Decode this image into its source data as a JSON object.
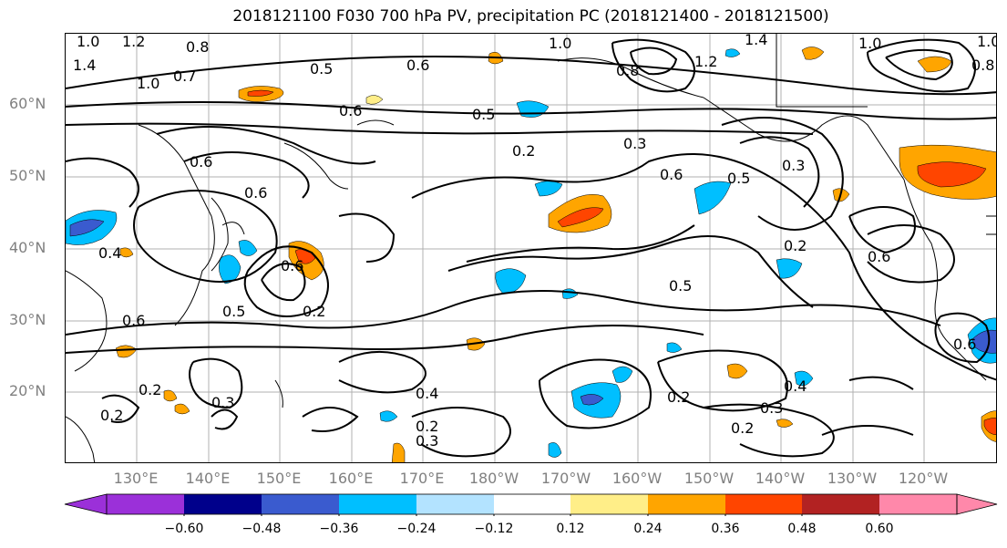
{
  "title": "2018121100 F030 700 hPa PV, precipitation PC (2018121400 - 2018121500)",
  "lat_labels": [
    "60°N",
    "50°N",
    "40°N",
    "30°N",
    "20°N"
  ],
  "lon_labels": [
    "130°E",
    "140°E",
    "150°E",
    "160°E",
    "170°E",
    "180°W",
    "170°W",
    "160°W",
    "150°W",
    "140°W",
    "130°W",
    "120°W"
  ],
  "colorbar": {
    "colors": [
      "#9b30d9",
      "#00008b",
      "#3a5bcf",
      "#00bfff",
      "#b3e3ff",
      "#ffffff",
      "#ffee88",
      "#ffa500",
      "#ff4500",
      "#b22222",
      "#ff88aa"
    ],
    "tick_labels": [
      "−0.60",
      "−0.48",
      "−0.36",
      "−0.24",
      "−0.12",
      "0.12",
      "0.24",
      "0.36",
      "0.48",
      "0.60"
    ]
  },
  "contour_labels": [
    "1.0",
    "1.2",
    "1.4",
    "1.0",
    "0.8",
    "0.7",
    "0.5",
    "0.6",
    "0.8",
    "1.0",
    "1.2",
    "1.0",
    "1.4",
    "0.6",
    "0.5",
    "0.6",
    "0.2",
    "0.6",
    "0.3",
    "0.3",
    "0.6",
    "0.5",
    "0.6",
    "0.2",
    "0.6",
    "0.4",
    "0.6",
    "0.5",
    "0.2",
    "0.5",
    "0.6",
    "0.2",
    "0.3",
    "0.2",
    "0.4",
    "0.2",
    "0.3",
    "0.2",
    "0.3",
    "0.4",
    "0.2",
    "0.8",
    "1.0"
  ]
}
